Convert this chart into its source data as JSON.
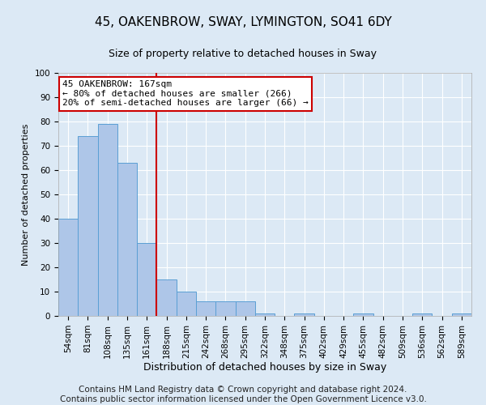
{
  "title": "45, OAKENBROW, SWAY, LYMINGTON, SO41 6DY",
  "subtitle": "Size of property relative to detached houses in Sway",
  "xlabel": "Distribution of detached houses by size in Sway",
  "ylabel": "Number of detached properties",
  "categories": [
    "54sqm",
    "81sqm",
    "108sqm",
    "135sqm",
    "161sqm",
    "188sqm",
    "215sqm",
    "242sqm",
    "268sqm",
    "295sqm",
    "322sqm",
    "348sqm",
    "375sqm",
    "402sqm",
    "429sqm",
    "455sqm",
    "482sqm",
    "509sqm",
    "536sqm",
    "562sqm",
    "589sqm"
  ],
  "values": [
    40,
    74,
    79,
    63,
    30,
    15,
    10,
    6,
    6,
    6,
    1,
    0,
    1,
    0,
    0,
    1,
    0,
    0,
    1,
    0,
    1
  ],
  "bar_color": "#aec6e8",
  "bar_edge_color": "#5a9fd4",
  "red_line_index": 4,
  "red_line_color": "#cc0000",
  "annotation_line1": "45 OAKENBROW: 167sqm",
  "annotation_line2": "← 80% of detached houses are smaller (266)",
  "annotation_line3": "20% of semi-detached houses are larger (66) →",
  "annotation_box_color": "#ffffff",
  "annotation_box_edge_color": "#cc0000",
  "ylim": [
    0,
    100
  ],
  "yticks": [
    0,
    10,
    20,
    30,
    40,
    50,
    60,
    70,
    80,
    90,
    100
  ],
  "footer": "Contains HM Land Registry data © Crown copyright and database right 2024.\nContains public sector information licensed under the Open Government Licence v3.0.",
  "bg_color": "#dce9f5",
  "plot_bg_color": "#dce9f5",
  "grid_color": "#ffffff",
  "title_fontsize": 11,
  "subtitle_fontsize": 9,
  "footer_fontsize": 7.5,
  "xlabel_fontsize": 9,
  "ylabel_fontsize": 8,
  "tick_fontsize": 7.5,
  "annot_fontsize": 8
}
